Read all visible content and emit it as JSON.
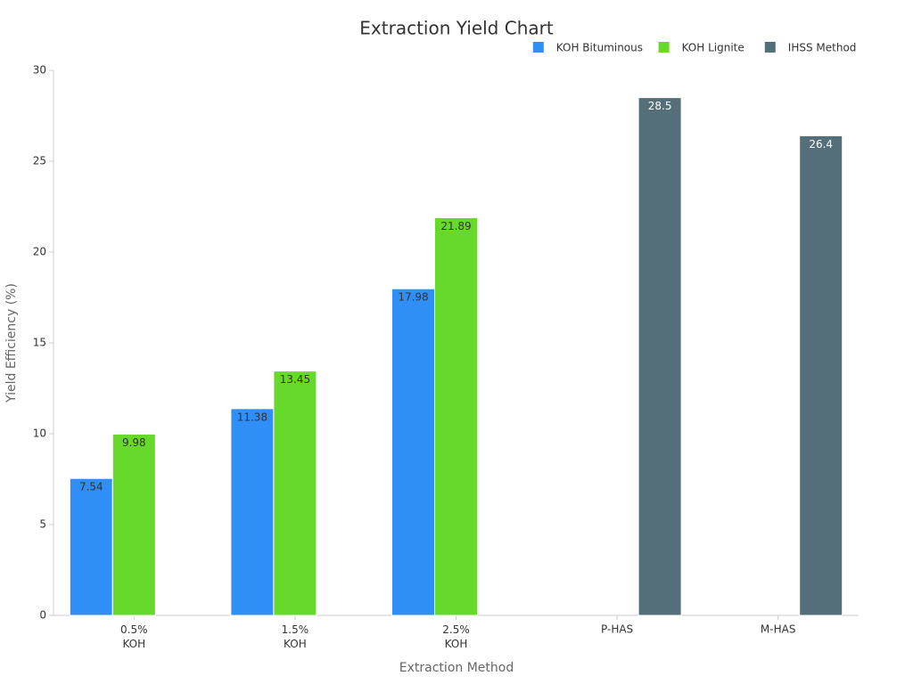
{
  "chart_data": {
    "type": "bar",
    "title": "Extraction Yield Chart",
    "x_label": "Extraction Method",
    "y_label": "Yield Efficiency (%)",
    "categories": [
      "0.5%\nKOH",
      "1.5%\nKOH",
      "2.5%\nKOH",
      "P-HAS",
      "M-HAS"
    ],
    "series": [
      {
        "name": "KOH Bituminous",
        "color": "#2f8ff7",
        "label_color": "#333333",
        "values": [
          7.54,
          11.38,
          17.98,
          null,
          null
        ]
      },
      {
        "name": "KOH Lignite",
        "color": "#66d92a",
        "label_color": "#333333",
        "values": [
          9.98,
          13.45,
          21.89,
          null,
          null
        ]
      },
      {
        "name": "IHSS Method",
        "color": "#546e7a",
        "label_color": "#ffffff",
        "values": [
          null,
          null,
          null,
          28.5,
          26.4
        ]
      }
    ],
    "ylim": [
      0,
      30
    ],
    "yticks": [
      0,
      5,
      10,
      15,
      20,
      25,
      30
    ],
    "grid": false,
    "legend": "top-right"
  }
}
